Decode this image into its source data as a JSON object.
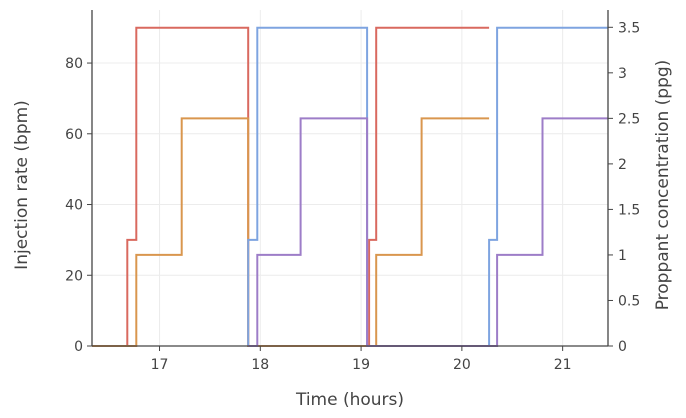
{
  "chart_data": {
    "type": "line",
    "title": "",
    "xlabel": "Time (hours)",
    "ylabel": "Injection rate (bpm)",
    "y2label": "Proppant concentration (ppg)",
    "xlim": [
      16.33,
      21.45
    ],
    "ylim": [
      0,
      95
    ],
    "y2lim": [
      0,
      3.69
    ],
    "x_ticks": [
      17,
      18,
      19,
      20,
      21
    ],
    "y_ticks": [
      0,
      20,
      40,
      60,
      80
    ],
    "y2_ticks": [
      0,
      0.5,
      1,
      1.5,
      2,
      2.5,
      3,
      3.5
    ],
    "grid": true,
    "legend": "none",
    "series": [
      {
        "color": "#d9695f",
        "axis": "y",
        "x": [
          16.33,
          16.68,
          16.68,
          16.77,
          16.77,
          17.88,
          17.88,
          19.08,
          19.08,
          19.15,
          19.15,
          20.27
        ],
        "y": [
          0,
          0,
          30,
          30,
          90,
          90,
          0,
          0,
          30,
          30,
          90,
          90
        ]
      },
      {
        "color": "#d9964e",
        "axis": "y2",
        "x": [
          16.33,
          16.77,
          16.77,
          17.22,
          17.22,
          17.88,
          17.88,
          19.15,
          19.15,
          19.6,
          19.6,
          20.27
        ],
        "y": [
          0,
          0,
          1,
          1,
          2.5,
          2.5,
          0,
          0,
          1,
          1,
          2.5,
          2.5
        ]
      },
      {
        "color": "#7ea4e0",
        "axis": "y",
        "x": [
          17.88,
          17.88,
          17.97,
          17.97,
          19.06,
          19.06,
          20.27,
          20.27,
          20.35,
          20.35,
          21.45
        ],
        "y": [
          0,
          30,
          30,
          90,
          90,
          0,
          0,
          30,
          30,
          90,
          90
        ]
      },
      {
        "color": "#9d7dc8",
        "axis": "y2",
        "x": [
          17.88,
          17.97,
          17.97,
          18.4,
          18.4,
          19.06,
          19.06,
          20.27,
          20.35,
          20.35,
          20.8,
          20.8,
          21.45
        ],
        "y": [
          0,
          0,
          1,
          1,
          2.5,
          2.5,
          0,
          0,
          0,
          1,
          1,
          2.5,
          2.5
        ]
      }
    ]
  }
}
